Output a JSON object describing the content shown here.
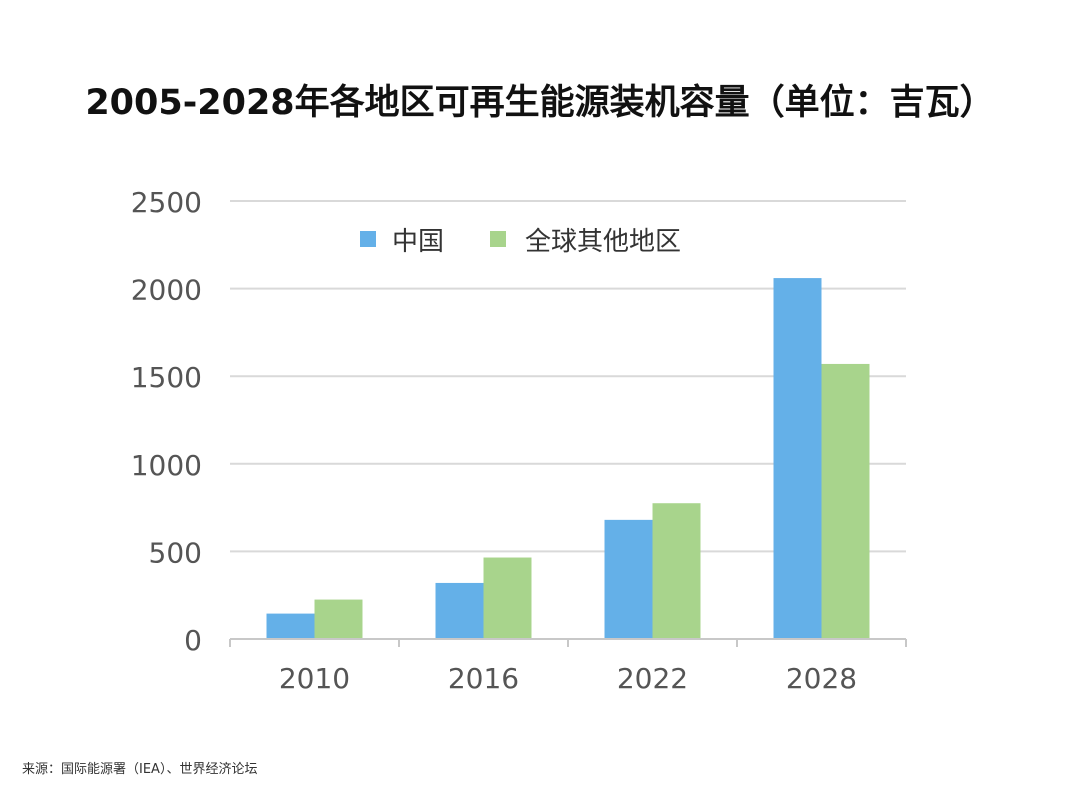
{
  "chart_data": {
    "type": "bar",
    "title": "2005-2028年各地区可再生能源装机容量（单位：吉瓦）",
    "categories": [
      "2010",
      "2016",
      "2022",
      "2028"
    ],
    "series": [
      {
        "name": "中国",
        "values": [
          145,
          320,
          680,
          2060
        ],
        "color": "#64b0e8"
      },
      {
        "name": "全球其他地区",
        "values": [
          225,
          465,
          775,
          1570
        ],
        "color": "#a8d48c"
      }
    ],
    "xlabel": "",
    "ylabel": "",
    "ylim": [
      0,
      2500
    ],
    "yticks": [
      0,
      500,
      1000,
      1500,
      2000,
      2500
    ],
    "grid": true,
    "legend_position": "top-center"
  },
  "source": "来源：国际能源署（IEA）、世界经济论坛"
}
